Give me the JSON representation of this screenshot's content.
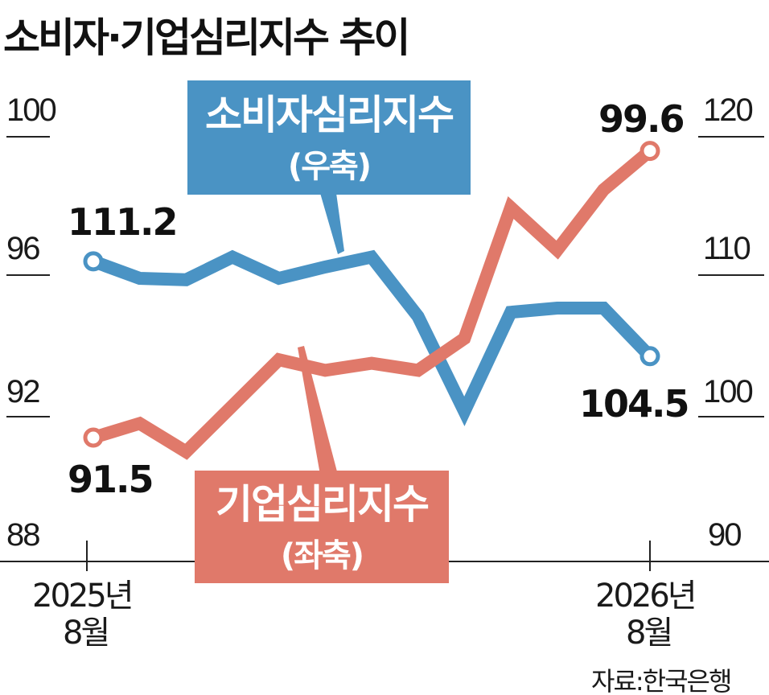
{
  "chart_data": {
    "type": "line",
    "title": "소비자·기업심리지수 추이",
    "x": [
      "2025년 8월",
      "",
      "",
      "",
      "",
      "",
      "",
      "",
      "",
      "",
      "",
      "",
      "2026년 8월"
    ],
    "x_tick_labels": [
      {
        "year": "2025년",
        "month": "8월"
      },
      {
        "year": "2026년",
        "month": "8월"
      }
    ],
    "left_axis": {
      "ticks": [
        "100",
        "96",
        "92",
        "88"
      ],
      "range": [
        88,
        100
      ]
    },
    "right_axis": {
      "ticks": [
        "120",
        "110",
        "100",
        "90"
      ],
      "range": [
        90,
        120
      ]
    },
    "series": [
      {
        "name_line1": "소비자심리지수",
        "name_line2": "(우축)",
        "axis": "right",
        "color": "#4a93c4",
        "values": [
          111.2,
          110.0,
          109.9,
          111.5,
          110.0,
          110.8,
          111.5,
          107.3,
          100.6,
          107.6,
          107.9,
          107.9,
          104.5
        ],
        "start_label": "111.2",
        "end_label": "104.5"
      },
      {
        "name_line1": "기업심리지수",
        "name_line2": "(좌축)",
        "axis": "left",
        "color": "#e0796a",
        "values": [
          91.5,
          91.9,
          91.1,
          92.4,
          93.7,
          93.4,
          93.6,
          93.4,
          94.3,
          98.0,
          96.8,
          98.5,
          99.6
        ],
        "start_label": "91.5",
        "end_label": "99.6"
      }
    ],
    "grid": false,
    "source": "자료:한국은행"
  }
}
